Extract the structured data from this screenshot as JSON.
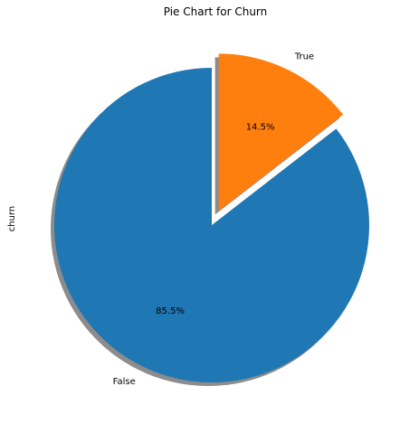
{
  "chart_data": {
    "type": "pie",
    "title": "Pie Chart for Churn",
    "ylabel": "churn",
    "labels": [
      "False",
      "True"
    ],
    "values": [
      85.5,
      14.5
    ],
    "pct_labels": [
      "85.5%",
      "14.5%"
    ],
    "colors": [
      "#1f77b4",
      "#ff7f0e"
    ],
    "explode": [
      0,
      0.1
    ],
    "start_angle_deg": 90,
    "shadow": true
  }
}
